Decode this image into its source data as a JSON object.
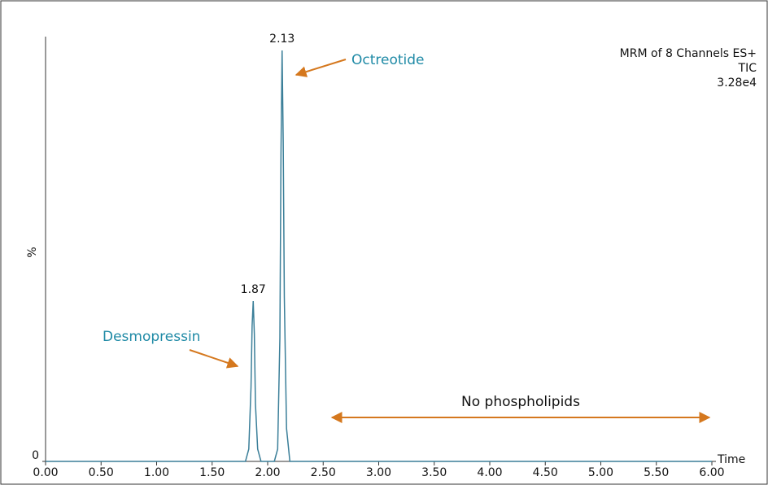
{
  "chart_data": {
    "type": "line",
    "ylabel": "%",
    "xlabel": "Time",
    "header": [
      "MRM of 8 Channels ES+",
      "TIC",
      "3.28e4"
    ],
    "x": [
      0,
      1.8,
      1.83,
      1.85,
      1.86,
      1.87,
      1.88,
      1.89,
      1.91,
      1.94,
      2.06,
      2.09,
      2.11,
      2.12,
      2.13,
      2.14,
      2.15,
      2.17,
      2.2,
      6.0
    ],
    "series": [
      {
        "name": "TIC",
        "color": "#3b7f99",
        "values": [
          0,
          0,
          3,
          18,
          33,
          39,
          31,
          14,
          3,
          0,
          0,
          3,
          30,
          75,
          100,
          78,
          40,
          8,
          0,
          0
        ]
      }
    ],
    "peaks": [
      1.87,
      2.13
    ],
    "annotations": [
      "Octreotide",
      "Desmopressin",
      "No phospholipids"
    ],
    "xlim": [
      0,
      6
    ],
    "xticks": [
      {
        "value": 0,
        "label": "0.00"
      },
      {
        "value": 0.5,
        "label": "0.50"
      },
      {
        "value": 1,
        "label": "1.00"
      },
      {
        "value": 1.5,
        "label": "1.50"
      },
      {
        "value": 2,
        "label": "2.00"
      },
      {
        "value": 2.5,
        "label": "2.50"
      },
      {
        "value": 3,
        "label": "3.00"
      },
      {
        "value": 3.5,
        "label": "3.50"
      },
      {
        "value": 4,
        "label": "4.00"
      },
      {
        "value": 4.5,
        "label": "4.50"
      },
      {
        "value": 5,
        "label": "5.00"
      },
      {
        "value": 5.5,
        "label": "5.50"
      },
      {
        "value": 6,
        "label": "6.00"
      }
    ],
    "ylim": [
      0,
      100
    ],
    "yticks": [
      0
    ]
  }
}
